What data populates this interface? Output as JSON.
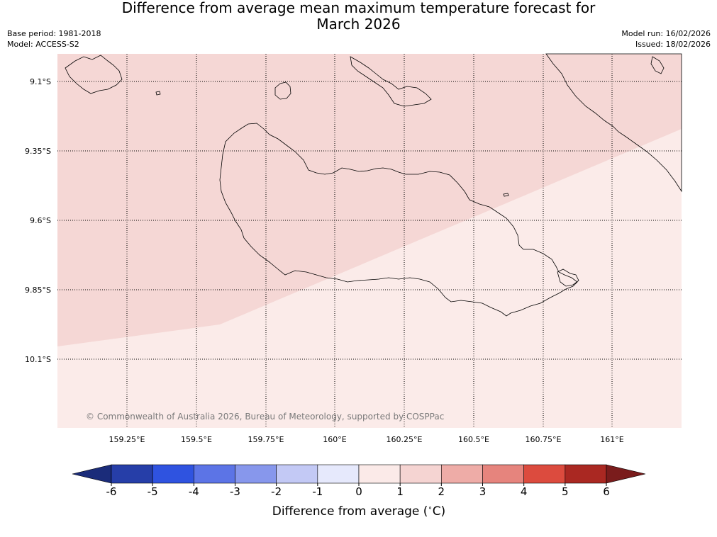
{
  "title_line1": "Difference from average mean maximum temperature forecast for",
  "title_line2": "March 2026",
  "base_period": "Base period: 1981-2018",
  "model": "Model: ACCESS-S2",
  "model_run": "Model run: 16/02/2026",
  "issued": "Issued: 18/02/2026",
  "copyright": "© Commonwealth of Australia 2026, Bureau of Meteorology, supported by COSPPac",
  "lat_labels": [
    "9.1°S",
    "9.35°S",
    "9.6°S",
    "9.85°S",
    "10.1°S"
  ],
  "lon_labels": [
    "159.25°E",
    "159.5°E",
    "159.75°E",
    "160°E",
    "160.25°E",
    "160.5°E",
    "160.75°E",
    "161°E"
  ],
  "colorbar": {
    "ticks": [
      "-6",
      "-5",
      "-4",
      "-3",
      "-2",
      "-1",
      "0",
      "1",
      "2",
      "3",
      "4",
      "5",
      "6"
    ],
    "colors": [
      "#263ea8",
      "#2f53e0",
      "#5c74e6",
      "#8797ec",
      "#c3c9f5",
      "#e6e9fc",
      "#fbeae8",
      "#f5d4d2",
      "#eeaca7",
      "#e6847d",
      "#dc4b3e",
      "#aa2822"
    ],
    "under_color": "#1b2c7a",
    "over_color": "#7a1c1c",
    "label": "Difference from average ($^\\circ$C)",
    "label_text": "Difference from average (",
    "label_unit": "C)"
  },
  "fields": {
    "category_upper": "1 to 2",
    "category_lower": "0 to 1",
    "color_upper": "#f5d7d5",
    "color_lower": "#fbebe9"
  }
}
